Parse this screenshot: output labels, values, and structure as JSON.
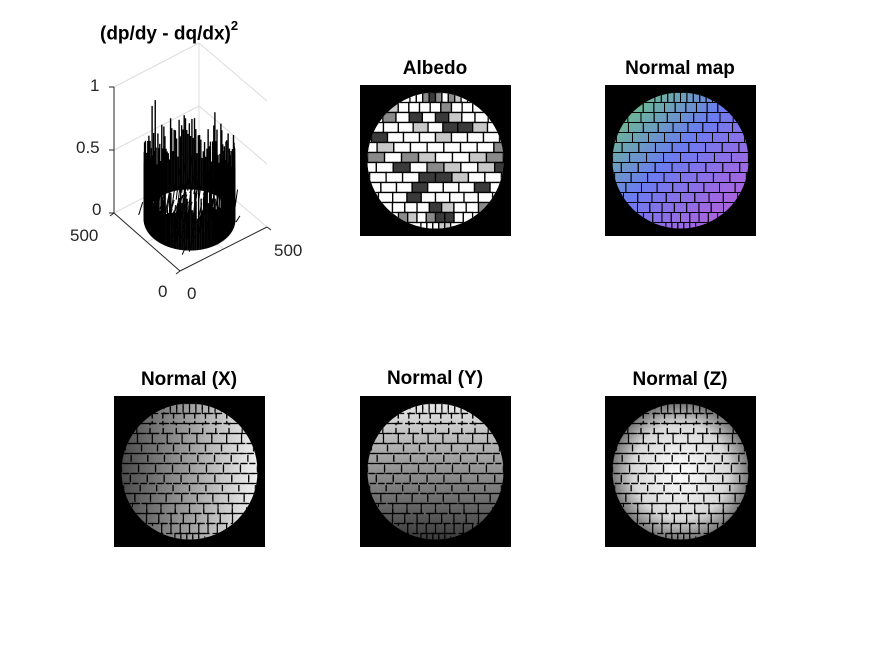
{
  "chart_data": [
    {
      "type": "surface",
      "title": "(dp/dy - dq/dx)",
      "title_superscript": "2",
      "zlim": [
        0,
        1
      ],
      "z_ticks": [
        "0",
        "0.5",
        "1"
      ],
      "x_ticks": [
        "0",
        "500"
      ],
      "y_ticks": [
        "0",
        "500"
      ],
      "grid": true,
      "colormap": "black mesh"
    },
    {
      "type": "image",
      "title": "Albedo",
      "colormap": "gray",
      "pattern": "brick sphere"
    },
    {
      "type": "image",
      "title": "Normal map",
      "colormap": "rgb",
      "pattern": "brick sphere"
    },
    {
      "type": "image",
      "title": "Normal (X)",
      "colormap": "gray",
      "pattern": "brick sphere"
    },
    {
      "type": "image",
      "title": "Normal (Y)",
      "colormap": "gray",
      "pattern": "brick sphere"
    },
    {
      "type": "image",
      "title": "Normal (Z)",
      "colormap": "gray",
      "pattern": "brick sphere"
    }
  ],
  "colors": {
    "background": "#ffffff",
    "panel": "#000000",
    "axis": "#262626",
    "grid": "#d9d9d9"
  }
}
